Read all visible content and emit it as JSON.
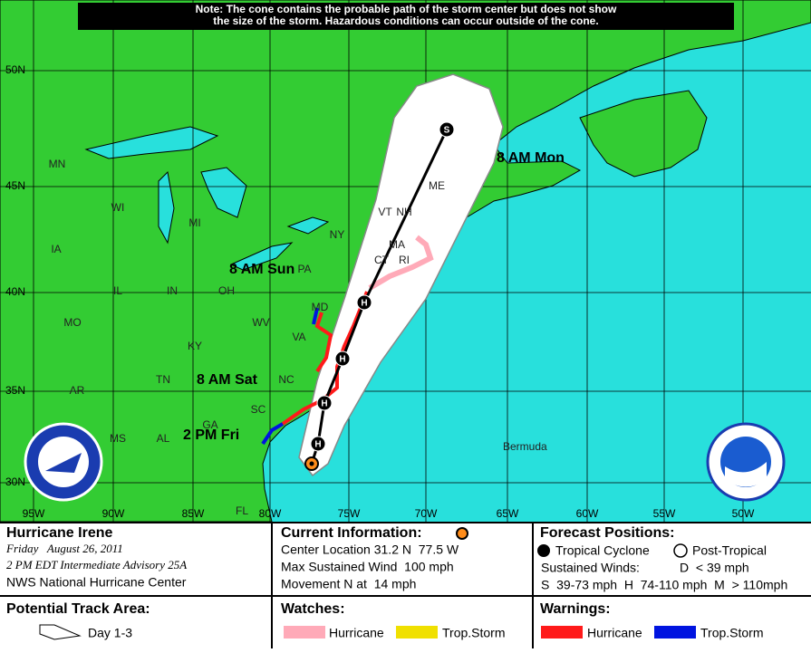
{
  "note": [
    "Note: The cone contains the probable path of the storm center but does not show",
    "the size of the storm. Hazardous conditions can occur outside of the cone."
  ],
  "latitude_labels": [
    "50N",
    "45N",
    "40N",
    "35N",
    "30N"
  ],
  "longitude_labels": [
    "95W",
    "90W",
    "85W",
    "80W",
    "75W",
    "70W",
    "65W",
    "60W",
    "55W",
    "50W"
  ],
  "state_labels": [
    "MN",
    "WI",
    "MI",
    "IA",
    "IL",
    "IN",
    "OH",
    "NY",
    "PA",
    "MD",
    "WV",
    "VA",
    "KY",
    "TN",
    "NC",
    "SC",
    "AR",
    "MO",
    "MS",
    "AL",
    "GA",
    "FL",
    "ME",
    "VT",
    "NH",
    "MA",
    "CT",
    "RI"
  ],
  "forecast_time_labels": [
    "8 AM Mon",
    "8 AM Sun",
    "8 AM Sat",
    "2 PM Fri"
  ],
  "track_markers": [
    "H",
    "H",
    "H",
    "H",
    "S"
  ],
  "place_labels": [
    "Bermuda"
  ],
  "storm_info": {
    "name": "Hurricane Irene",
    "date": "Friday   August 26, 2011",
    "advisory": "2 PM EDT Intermediate Advisory 25A",
    "agency": "NWS National Hurricane Center"
  },
  "current_information": {
    "title": "Current Information:",
    "center_location": "Center Location 31.2 N  77.5 W",
    "max_wind": "Max Sustained Wind  100 mph",
    "movement": "Movement N at  14 mph"
  },
  "forecast_positions": {
    "title": "Forecast Positions:",
    "tropical_cyclone": "Tropical Cyclone",
    "post_tropical": "Post-Tropical",
    "sustained_winds": "Sustained Winds:",
    "depression": "D  < 39 mph",
    "scale": "S  39-73 mph  H  74-110 mph  M  > 110mph"
  },
  "potential_track_area": {
    "title": "Potential Track Area:",
    "day_range": "Day 1-3"
  },
  "watches": {
    "title": "Watches:",
    "hurricane": "Hurricane",
    "tropical_storm": "Trop.Storm"
  },
  "warnings": {
    "title": "Warnings:",
    "hurricane": "Hurricane",
    "tropical_storm": "Trop.Storm"
  }
}
